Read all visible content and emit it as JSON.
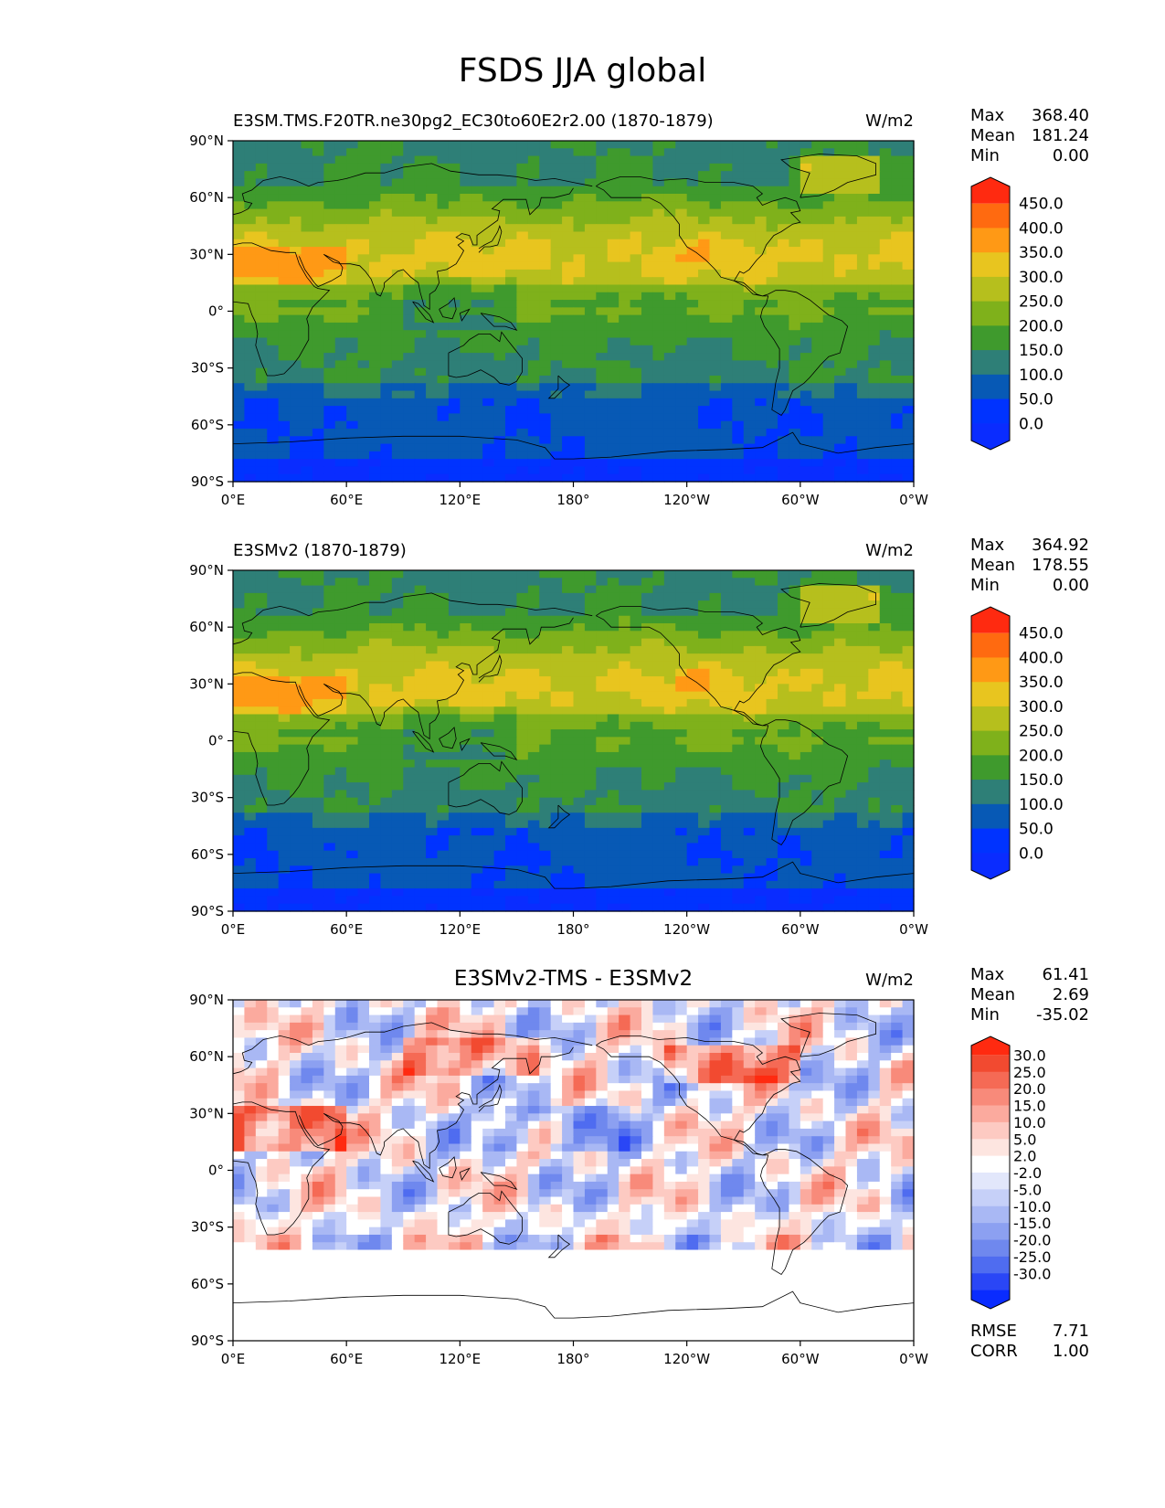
{
  "figure_title": "FSDS JJA global",
  "chart_data": [
    {
      "type": "heatmap",
      "title": "E3SM.TMS.F20TR.ne30pg2_EC30to60E2r2.00 (1870-1879)",
      "units": "W/m2",
      "stats": {
        "max_label": "Max",
        "max": "368.40",
        "mean_label": "Mean",
        "mean": "181.24",
        "min_label": "Min",
        "min": "0.00"
      },
      "colorbar_levels": [
        "450.0",
        "400.0",
        "350.0",
        "300.0",
        "250.0",
        "200.0",
        "150.0",
        "100.0",
        "50.0",
        "0.0"
      ],
      "colorbar_colors": [
        "#ff2a10",
        "#ff6a10",
        "#ff9915",
        "#e8c51f",
        "#b6bf1d",
        "#7fb11b",
        "#3f9a2d",
        "#2e7f77",
        "#0759b5",
        "#0033ff",
        "#0a2cff"
      ],
      "xticks": [
        "0°E",
        "60°E",
        "120°E",
        "180°",
        "120°W",
        "60°W",
        "0°W"
      ],
      "yticks": [
        "90°N",
        "60°N",
        "30°N",
        "0°",
        "30°S",
        "60°S",
        "90°S"
      ]
    },
    {
      "type": "heatmap",
      "title": "E3SMv2 (1870-1879)",
      "units": "W/m2",
      "stats": {
        "max_label": "Max",
        "max": "364.92",
        "mean_label": "Mean",
        "mean": "178.55",
        "min_label": "Min",
        "min": "0.00"
      },
      "colorbar_levels": [
        "450.0",
        "400.0",
        "350.0",
        "300.0",
        "250.0",
        "200.0",
        "150.0",
        "100.0",
        "50.0",
        "0.0"
      ],
      "colorbar_colors": [
        "#ff2a10",
        "#ff6a10",
        "#ff9915",
        "#e8c51f",
        "#b6bf1d",
        "#7fb11b",
        "#3f9a2d",
        "#2e7f77",
        "#0759b5",
        "#0033ff",
        "#0a2cff"
      ],
      "xticks": [
        "0°E",
        "60°E",
        "120°E",
        "180°",
        "120°W",
        "60°W",
        "0°W"
      ],
      "yticks": [
        "90°N",
        "60°N",
        "30°N",
        "0°",
        "30°S",
        "60°S",
        "90°S"
      ]
    },
    {
      "type": "heatmap",
      "title": "E3SMv2-TMS - E3SMv2",
      "units": "W/m2",
      "stats": {
        "max_label": "Max",
        "max": "61.41",
        "mean_label": "Mean",
        "mean": "2.69",
        "min_label": "Min",
        "min": "-35.02"
      },
      "colorbar_levels": [
        "30.0",
        "25.0",
        "20.0",
        "15.0",
        "10.0",
        "5.0",
        "2.0",
        "-2.0",
        "-5.0",
        "-10.0",
        "-15.0",
        "-20.0",
        "-25.0",
        "-30.0"
      ],
      "colorbar_colors": [
        "#ff2a10",
        "#f24a30",
        "#f56a55",
        "#f88a7a",
        "#fbaa9e",
        "#fdcac2",
        "#fde5e0",
        "#ffffff",
        "#e2e7fb",
        "#c6d0f8",
        "#a9b8f4",
        "#8ca0f1",
        "#6f88ee",
        "#4f6cf0",
        "#2a46f6",
        "#0a2cff"
      ],
      "xticks": [
        "0°E",
        "60°E",
        "120°E",
        "180°",
        "120°W",
        "60°W",
        "0°W"
      ],
      "yticks": [
        "90°N",
        "60°N",
        "30°N",
        "0°",
        "30°S",
        "60°S",
        "90°S"
      ],
      "rmse_label": "RMSE",
      "rmse": "7.71",
      "corr_label": "CORR",
      "corr": "1.00"
    }
  ]
}
